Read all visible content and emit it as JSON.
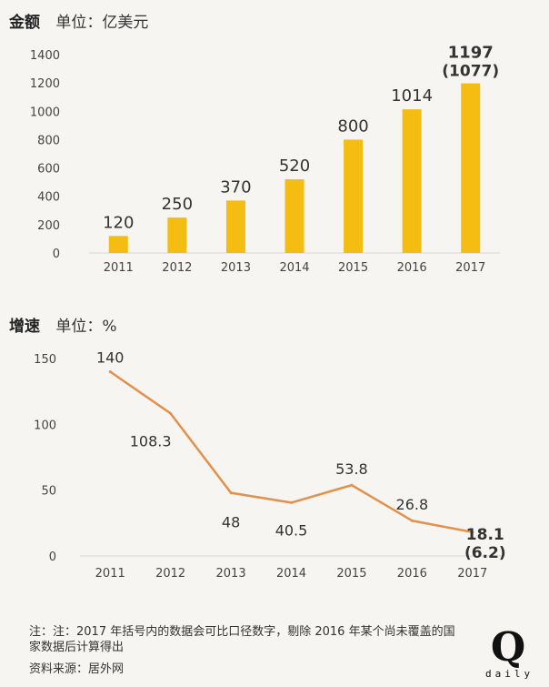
{
  "header_amount": {
    "title": "金额",
    "unit": "单位：亿美元"
  },
  "header_growth": {
    "title": "增速",
    "unit": "单位：%"
  },
  "chart_data": [
    {
      "type": "bar",
      "title": "金额",
      "ylabel": "单位：亿美元",
      "categories": [
        "2011",
        "2012",
        "2013",
        "2014",
        "2015",
        "2016",
        "2017"
      ],
      "values": [
        120,
        250,
        370,
        520,
        800,
        1014,
        1197
      ],
      "data_labels": [
        "120",
        "250",
        "370",
        "520",
        "800",
        "1014",
        "1197"
      ],
      "extra_labels": {
        "2017": "(1077)"
      },
      "yticks": [
        "0",
        "200",
        "400",
        "600",
        "800",
        "1000",
        "1200",
        "1400"
      ],
      "ylim": [
        0,
        1400
      ],
      "color": "#f5bd12",
      "grid": false
    },
    {
      "type": "line",
      "title": "增速",
      "ylabel": "单位：%",
      "categories": [
        "2011",
        "2012",
        "2013",
        "2014",
        "2015",
        "2016",
        "2017"
      ],
      "values": [
        140,
        108.3,
        48,
        40.5,
        53.8,
        26.8,
        18.1
      ],
      "data_labels": [
        "140",
        "108.3",
        "48",
        "40.5",
        "53.8",
        "26.8",
        "18.1"
      ],
      "extra_labels": {
        "2017": "(6.2)"
      },
      "yticks": [
        "0",
        "50",
        "100",
        "150"
      ],
      "ylim": [
        0,
        150
      ],
      "color": "#e3904a",
      "grid": false
    }
  ],
  "footnote": {
    "note": "注：注：2017 年括号内的数据会可比口径数字，剔除 2016 年某个尚未覆盖的国家数据后计算得出",
    "source": "资料来源：居外网"
  },
  "logo": {
    "mark": "Q",
    "text": "daily"
  }
}
